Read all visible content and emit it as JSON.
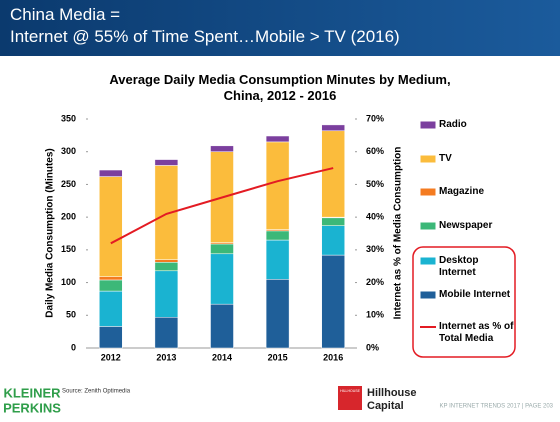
{
  "slide": {
    "title_line1": "China Media =",
    "title_line2": "Internet @ 55% of Time Spent…Mobile > TV (2016)",
    "source": "Source: Zenith Optimedia",
    "kp_line1": "KLEINER",
    "kp_line2": "PERKINS",
    "hh_small": "HILLHOUSE",
    "hh_line1": "Hillhouse",
    "hh_line2": "Capital",
    "footer": "KP INTERNET TRENDS 2017  |  PAGE 203"
  },
  "chart_data": {
    "type": "bar",
    "stacked": true,
    "title": "Average Daily Media Consumption Minutes by Medium, China, 2012 - 2016",
    "y_label": "Daily Media Consumption (Minutes)",
    "y2_label": "Internet as % of Media Consumption",
    "categories": [
      "2012",
      "2013",
      "2014",
      "2015",
      "2016"
    ],
    "ylim": [
      0,
      350
    ],
    "yticks": [
      0,
      50,
      100,
      150,
      200,
      250,
      300,
      350
    ],
    "y2lim": [
      0,
      70
    ],
    "y2ticks": [
      {
        "value": 0,
        "label": "0%"
      },
      {
        "value": 10,
        "label": "10%"
      },
      {
        "value": 20,
        "label": "20%"
      },
      {
        "value": 30,
        "label": "30%"
      },
      {
        "value": 40,
        "label": "40%"
      },
      {
        "value": 50,
        "label": "50%"
      },
      {
        "value": 60,
        "label": "60%"
      },
      {
        "value": 70,
        "label": "70%"
      }
    ],
    "grid": false,
    "series": [
      {
        "name": "Mobile Internet",
        "color": "#1f5f99",
        "values": [
          33,
          47,
          67,
          105,
          142
        ]
      },
      {
        "name": "Desktop Internet",
        "color": "#1ab3d1",
        "values": [
          54,
          71,
          77,
          60,
          45
        ]
      },
      {
        "name": "Newspaper",
        "color": "#3cb878",
        "values": [
          17,
          13,
          15,
          14,
          12
        ]
      },
      {
        "name": "Magazine",
        "color": "#f47b20",
        "values": [
          5,
          4,
          2,
          2,
          1
        ]
      },
      {
        "name": "TV",
        "color": "#fbbc3c",
        "values": [
          153,
          144,
          139,
          134,
          132
        ]
      },
      {
        "name": "Radio",
        "color": "#7b3f9e",
        "values": [
          10,
          9,
          9,
          9,
          9
        ]
      },
      {
        "name": "Internet as % of Total Media",
        "color": "#e31b23",
        "type": "line",
        "axis": "y2",
        "values": [
          32,
          41,
          46,
          51,
          55
        ]
      }
    ]
  }
}
